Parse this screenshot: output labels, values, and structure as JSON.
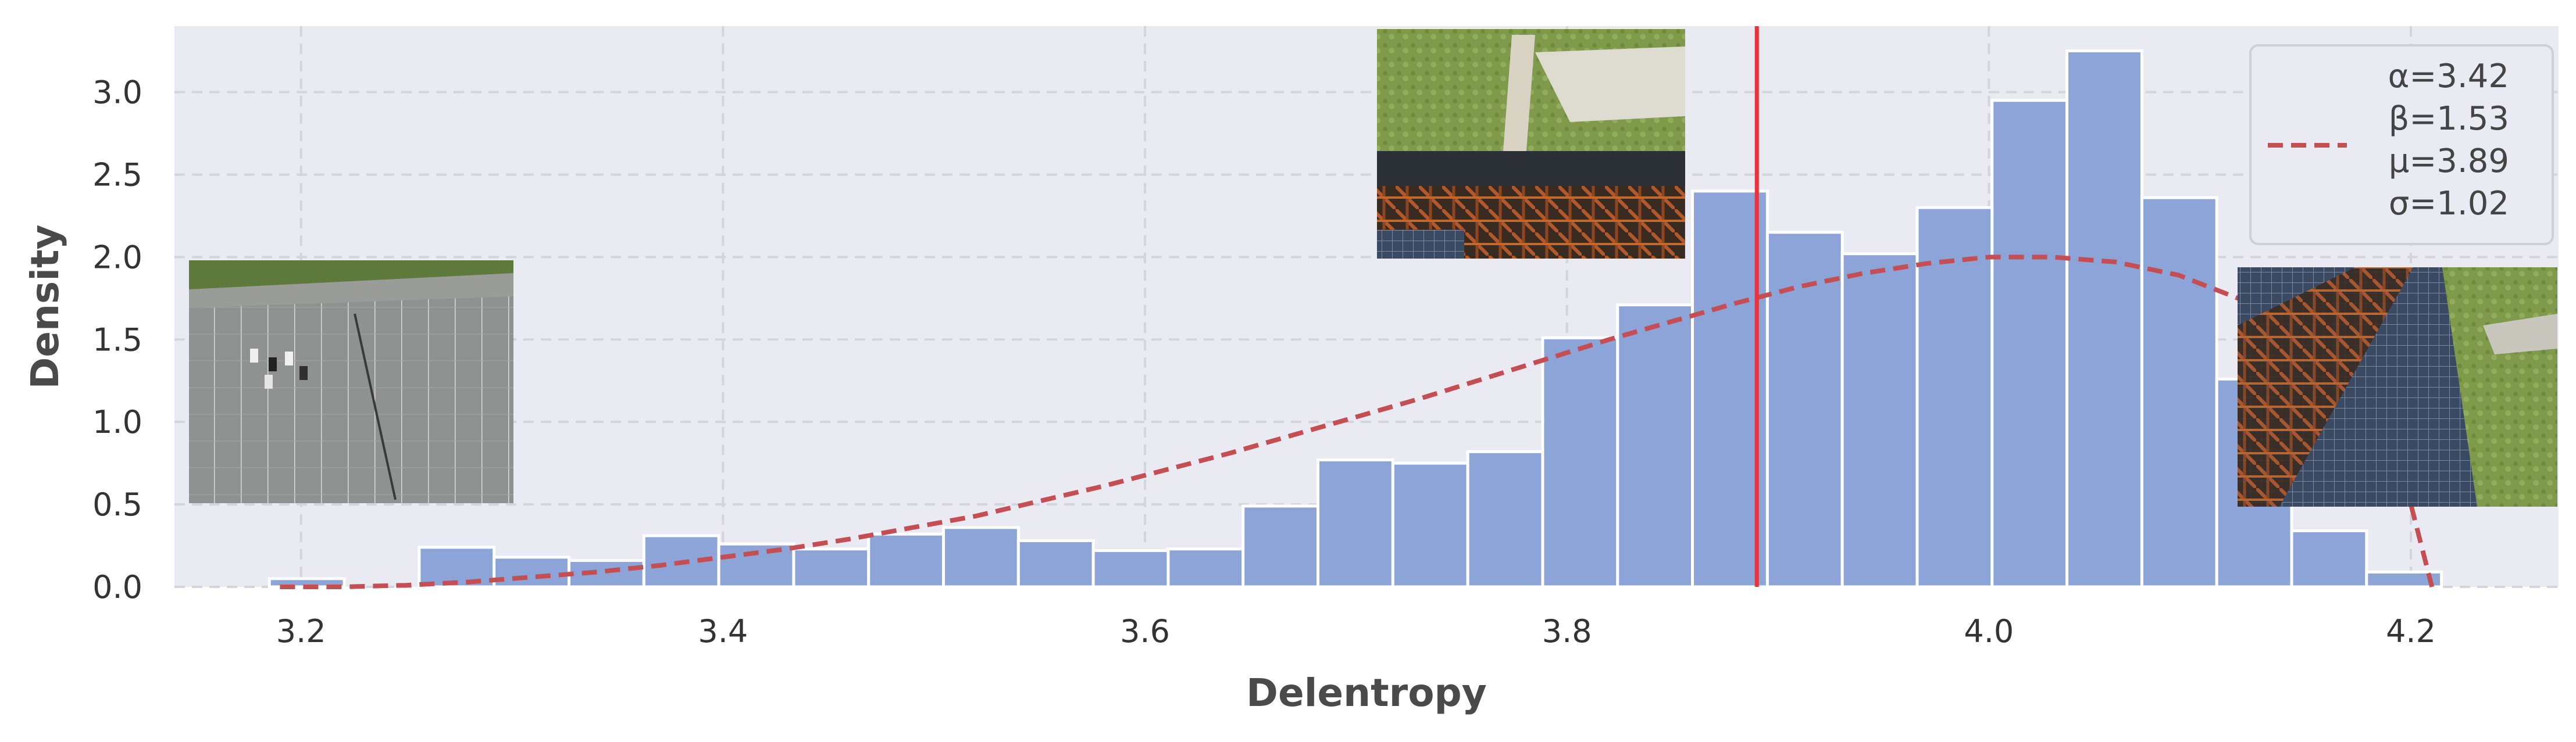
{
  "chart_data": {
    "type": "bar",
    "xlabel": "Delentropy",
    "ylabel": "Density",
    "xlim": [
      3.14,
      4.27
    ],
    "ylim": [
      0,
      3.4
    ],
    "xticks": [
      "3.2",
      "3.4",
      "3.6",
      "3.8",
      "4.0",
      "4.2"
    ],
    "yticks": [
      "0.0",
      "0.5",
      "1.0",
      "1.5",
      "2.0",
      "2.5",
      "3.0"
    ],
    "grid": true,
    "bin_width": 0.0355,
    "bins": [
      {
        "x0": 3.185,
        "height": 0.05
      },
      {
        "x0": 3.256,
        "height": 0.24
      },
      {
        "x0": 3.2915,
        "height": 0.18
      },
      {
        "x0": 3.327,
        "height": 0.16
      },
      {
        "x0": 3.3625,
        "height": 0.31
      },
      {
        "x0": 3.398,
        "height": 0.26
      },
      {
        "x0": 3.4335,
        "height": 0.23
      },
      {
        "x0": 3.469,
        "height": 0.32
      },
      {
        "x0": 3.5045,
        "height": 0.36
      },
      {
        "x0": 3.54,
        "height": 0.28
      },
      {
        "x0": 3.5755,
        "height": 0.22
      },
      {
        "x0": 3.611,
        "height": 0.23
      },
      {
        "x0": 3.6465,
        "height": 0.49
      },
      {
        "x0": 3.682,
        "height": 0.77
      },
      {
        "x0": 3.7175,
        "height": 0.75
      },
      {
        "x0": 3.753,
        "height": 0.82
      },
      {
        "x0": 3.7885,
        "height": 1.51
      },
      {
        "x0": 3.824,
        "height": 1.71
      },
      {
        "x0": 3.8595,
        "height": 2.4
      },
      {
        "x0": 3.895,
        "height": 2.15
      },
      {
        "x0": 3.9305,
        "height": 2.02
      },
      {
        "x0": 3.966,
        "height": 2.3
      },
      {
        "x0": 4.0015,
        "height": 2.95
      },
      {
        "x0": 4.037,
        "height": 3.25
      },
      {
        "x0": 4.0725,
        "height": 2.36
      },
      {
        "x0": 4.108,
        "height": 1.26
      },
      {
        "x0": 4.1435,
        "height": 0.34
      },
      {
        "x0": 4.179,
        "height": 0.09
      }
    ],
    "fit_curve": {
      "style": "dashed",
      "color": "#c44e52",
      "x": [
        3.19,
        3.22,
        3.25,
        3.28,
        3.31,
        3.34,
        3.37,
        3.4,
        3.43,
        3.46,
        3.49,
        3.52,
        3.55,
        3.58,
        3.61,
        3.64,
        3.67,
        3.7,
        3.73,
        3.76,
        3.79,
        3.82,
        3.85,
        3.88,
        3.91,
        3.94,
        3.97,
        4.0,
        4.03,
        4.06,
        4.09,
        4.12,
        4.15,
        4.17,
        4.19,
        4.2,
        4.21
      ],
      "y": [
        0.0,
        0.0,
        0.01,
        0.03,
        0.06,
        0.09,
        0.13,
        0.18,
        0.23,
        0.29,
        0.36,
        0.43,
        0.52,
        0.61,
        0.71,
        0.81,
        0.92,
        1.03,
        1.14,
        1.26,
        1.38,
        1.5,
        1.61,
        1.72,
        1.82,
        1.9,
        1.96,
        2.0,
        2.0,
        1.97,
        1.89,
        1.74,
        1.48,
        1.2,
        0.78,
        0.5,
        0.0
      ]
    },
    "vline": {
      "x": 3.89,
      "color": "#e8333c"
    },
    "legend": {
      "position": "top-right",
      "lines": [
        "α=3.42",
        "β=1.53",
        "μ=3.89",
        "σ=1.02"
      ]
    },
    "colors": {
      "bar": "#8da4d8",
      "bar_edge": "#ffffff",
      "plot_bg": "#eaeaf2",
      "grid": "#d4d4dc"
    },
    "inset_images": [
      "aerial-parking-lot",
      "aerial-green-field-bridge",
      "aerial-solar-rusty-structure"
    ]
  }
}
